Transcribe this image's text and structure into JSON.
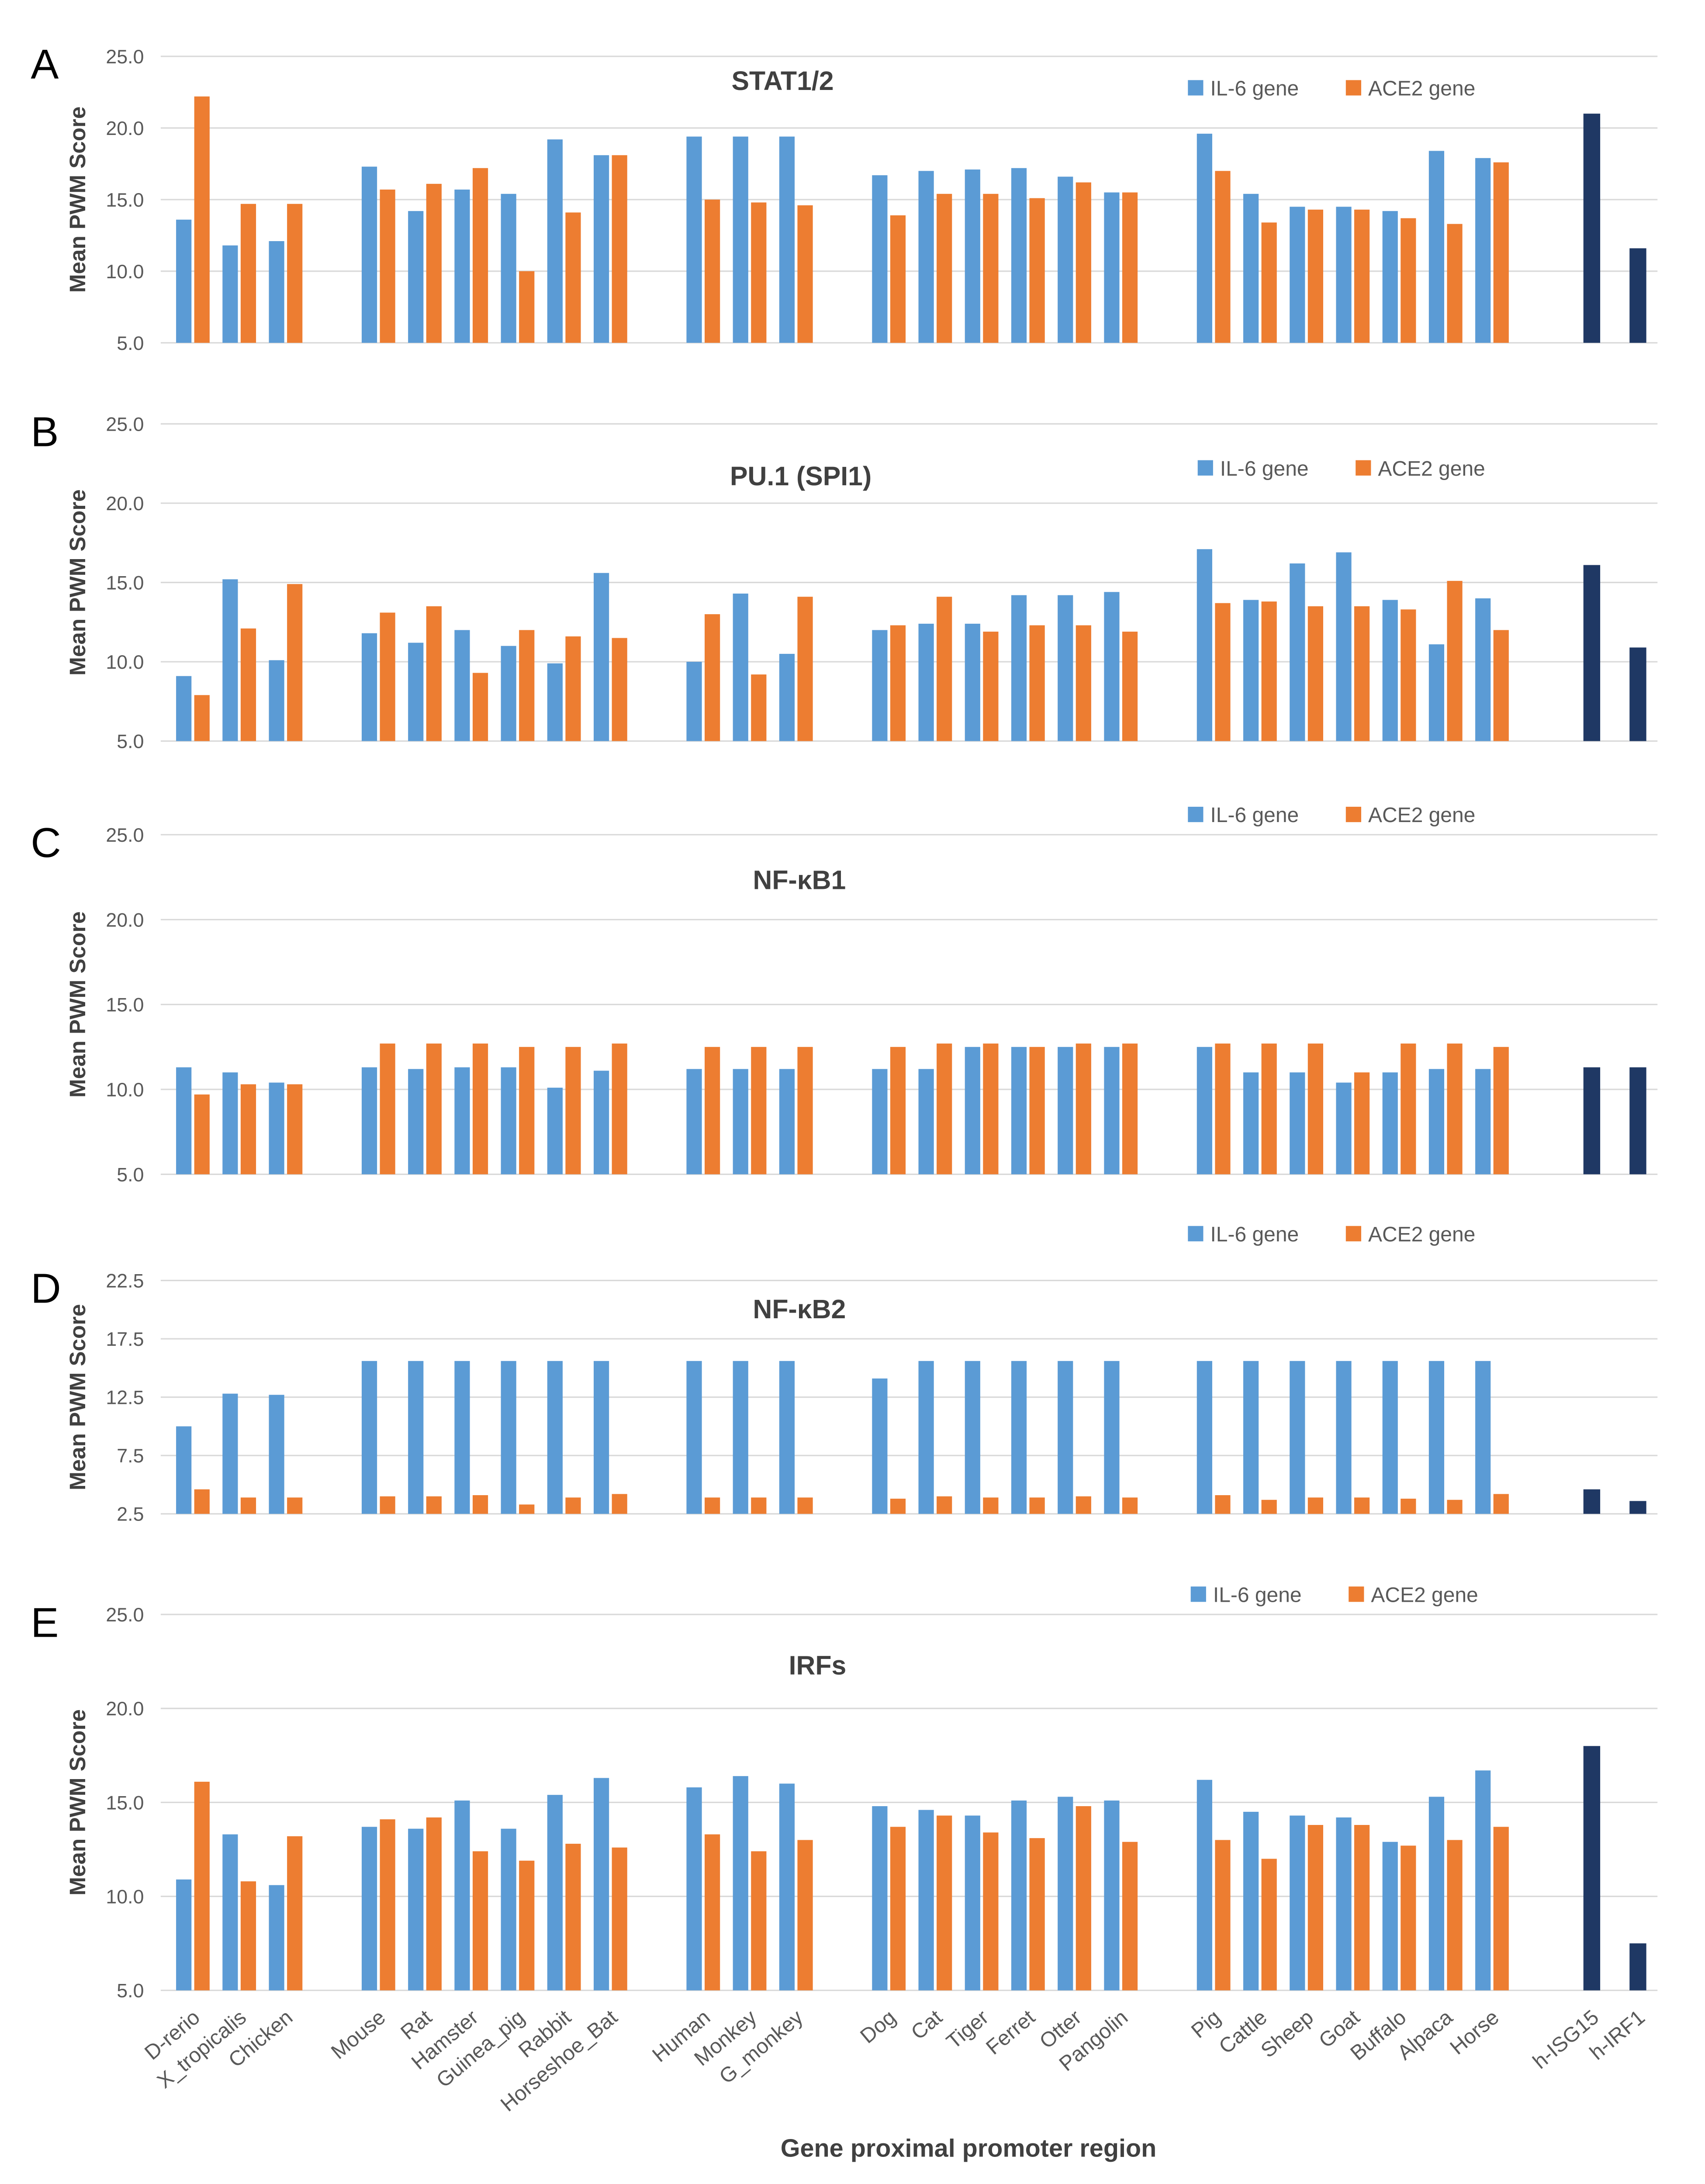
{
  "chart_data": {
    "type": "bar",
    "xlabel": "Gene proximal promoter region",
    "ylabel": "Mean PWM Score",
    "colors": {
      "IL-6 gene": "#5b9bd5",
      "ACE2 gene": "#ed7d31",
      "human_controls": "#1f3864"
    },
    "legend": [
      "IL-6 gene",
      "ACE2 gene"
    ],
    "legend_placement": "top-right",
    "grid": "horizontal",
    "categories": [
      "D-rerio",
      "X_tropicalis",
      "Chicken",
      "Mouse",
      "Rat",
      "Hamster",
      "Guinea_pig",
      "Rabbit",
      "Horseshoe_Bat",
      "Human",
      "Monkey",
      "G_monkey",
      "Dog",
      "Cat",
      "Tiger",
      "Ferret",
      "Otter",
      "Pangolin",
      "Pig",
      "Cattle",
      "Sheep",
      "Goat",
      "Buffalo",
      "Alpaca",
      "Horse"
    ],
    "control_categories": [
      "h-ISG15",
      "h-IRF1"
    ],
    "panels": [
      {
        "letter": "A",
        "title": "STAT1/2",
        "ylim": [
          5,
          25
        ],
        "ticks": [
          "5.0",
          "10.0",
          "15.0",
          "20.0",
          "25.0"
        ],
        "series": [
          {
            "name": "IL-6 gene",
            "values": [
              13.6,
              11.8,
              12.1,
              17.3,
              14.2,
              15.7,
              15.4,
              19.2,
              18.1,
              19.4,
              19.4,
              19.4,
              16.7,
              17.0,
              17.1,
              17.2,
              16.6,
              15.5,
              19.6,
              15.4,
              14.5,
              14.5,
              14.2,
              18.4,
              17.9
            ]
          },
          {
            "name": "ACE2 gene",
            "values": [
              22.2,
              14.7,
              14.7,
              15.7,
              16.1,
              17.2,
              10.0,
              14.1,
              18.1,
              15.0,
              14.8,
              14.6,
              13.9,
              15.4,
              15.4,
              15.1,
              16.2,
              15.5,
              17.0,
              13.4,
              14.3,
              14.3,
              13.7,
              13.3,
              17.6
            ]
          }
        ],
        "controls": [
          21.0,
          11.6
        ]
      },
      {
        "letter": "B",
        "title": "PU.1 (SPI1)",
        "ylim": [
          5,
          25
        ],
        "ticks": [
          "5.0",
          "10.0",
          "15.0",
          "20.0",
          "25.0"
        ],
        "series": [
          {
            "name": "IL-6 gene",
            "values": [
              9.1,
              15.2,
              10.1,
              11.8,
              11.2,
              12.0,
              11.0,
              9.9,
              15.6,
              10.0,
              14.3,
              10.5,
              12.0,
              12.4,
              12.4,
              14.2,
              14.2,
              14.4,
              17.1,
              13.9,
              16.2,
              16.9,
              13.9,
              11.1,
              14.0
            ]
          },
          {
            "name": "ACE2 gene",
            "values": [
              7.9,
              12.1,
              14.9,
              13.1,
              13.5,
              9.3,
              12.0,
              11.6,
              11.5,
              13.0,
              9.2,
              14.1,
              12.3,
              14.1,
              11.9,
              12.3,
              12.3,
              11.9,
              13.7,
              13.8,
              13.5,
              13.5,
              13.3,
              15.1,
              12.0
            ]
          }
        ],
        "controls": [
          16.1,
          10.9
        ]
      },
      {
        "letter": "C",
        "title": "NF-κB1",
        "ylim": [
          5,
          25
        ],
        "ticks": [
          "5.0",
          "10.0",
          "15.0",
          "20.0",
          "25.0"
        ],
        "series": [
          {
            "name": "IL-6 gene",
            "values": [
              11.3,
              11.0,
              10.4,
              11.3,
              11.2,
              11.3,
              11.3,
              10.1,
              11.1,
              11.2,
              11.2,
              11.2,
              11.2,
              11.2,
              12.5,
              12.5,
              12.5,
              12.5,
              12.5,
              11.0,
              11.0,
              10.4,
              11.0,
              11.2,
              11.2
            ]
          },
          {
            "name": "ACE2 gene",
            "values": [
              9.7,
              10.3,
              10.3,
              12.7,
              12.7,
              12.7,
              12.5,
              12.5,
              12.7,
              12.5,
              12.5,
              12.5,
              12.5,
              12.7,
              12.7,
              12.5,
              12.7,
              12.7,
              12.7,
              12.7,
              12.7,
              11.0,
              12.7,
              12.7,
              12.5
            ]
          }
        ],
        "controls": [
          11.3,
          11.3
        ]
      },
      {
        "letter": "D",
        "title": "NF-κB2",
        "ylim": [
          2.5,
          22.5
        ],
        "ticks": [
          "2.5",
          "7.5",
          "12.5",
          "17.5",
          "22.5"
        ],
        "series": [
          {
            "name": "IL-6 gene",
            "values": [
              10.0,
              12.8,
              12.7,
              15.6,
              15.6,
              15.6,
              15.6,
              15.6,
              15.6,
              15.6,
              15.6,
              15.6,
              14.1,
              15.6,
              15.6,
              15.6,
              15.6,
              15.6,
              15.6,
              15.6,
              15.6,
              15.6,
              15.6,
              15.6,
              15.6
            ]
          },
          {
            "name": "ACE2 gene",
            "values": [
              4.6,
              3.9,
              3.9,
              4.0,
              4.0,
              4.1,
              3.3,
              3.9,
              4.2,
              3.9,
              3.9,
              3.9,
              3.8,
              4.0,
              3.9,
              3.9,
              4.0,
              3.9,
              4.1,
              3.7,
              3.9,
              3.9,
              3.8,
              3.7,
              4.2
            ]
          }
        ],
        "controls": [
          4.6,
          3.6
        ]
      },
      {
        "letter": "E",
        "title": "IRFs",
        "ylim": [
          5,
          25
        ],
        "ticks": [
          "5.0",
          "10.0",
          "15.0",
          "20.0",
          "25.0"
        ],
        "series": [
          {
            "name": "IL-6 gene",
            "values": [
              10.9,
              13.3,
              10.6,
              13.7,
              13.6,
              15.1,
              13.6,
              15.4,
              16.3,
              15.8,
              16.4,
              16.0,
              14.8,
              14.6,
              14.3,
              15.1,
              15.3,
              15.1,
              16.2,
              14.5,
              14.3,
              14.2,
              12.9,
              15.3,
              16.7
            ]
          },
          {
            "name": "ACE2 gene",
            "values": [
              16.1,
              10.8,
              13.2,
              14.1,
              14.2,
              12.4,
              11.9,
              12.8,
              12.6,
              13.3,
              12.4,
              13.0,
              13.7,
              14.3,
              13.4,
              13.1,
              14.8,
              12.9,
              13.0,
              12.0,
              13.8,
              13.8,
              12.7,
              13.0,
              13.7
            ]
          }
        ],
        "controls": [
          18.0,
          7.5
        ]
      }
    ]
  }
}
